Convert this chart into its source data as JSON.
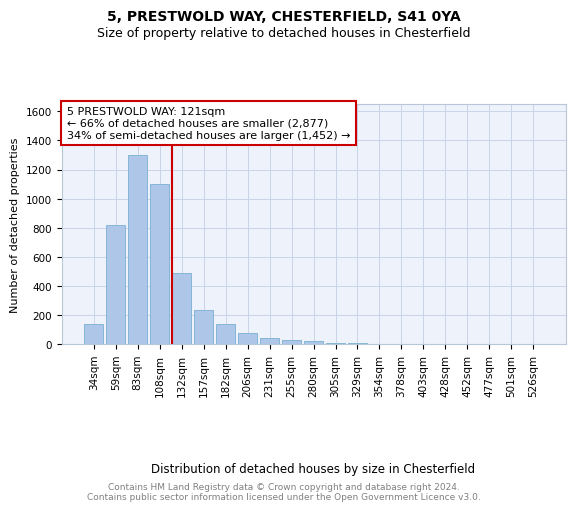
{
  "title1": "5, PRESTWOLD WAY, CHESTERFIELD, S41 0YA",
  "title2": "Size of property relative to detached houses in Chesterfield",
  "xlabel": "Distribution of detached houses by size in Chesterfield",
  "ylabel": "Number of detached properties",
  "categories": [
    "34sqm",
    "59sqm",
    "83sqm",
    "108sqm",
    "132sqm",
    "157sqm",
    "182sqm",
    "206sqm",
    "231sqm",
    "255sqm",
    "280sqm",
    "305sqm",
    "329sqm",
    "354sqm",
    "378sqm",
    "403sqm",
    "428sqm",
    "452sqm",
    "477sqm",
    "501sqm",
    "526sqm"
  ],
  "values": [
    140,
    820,
    1300,
    1100,
    490,
    235,
    135,
    75,
    45,
    30,
    20,
    10,
    8,
    3,
    2,
    1,
    0,
    0,
    0,
    0,
    0
  ],
  "bar_color": "#aec6e8",
  "bar_edge_color": "#7ab0d4",
  "vline_x": 3.55,
  "vline_color": "#cc0000",
  "annotation_box_text": "5 PRESTWOLD WAY: 121sqm\n← 66% of detached houses are smaller (2,877)\n34% of semi-detached houses are larger (1,452) →",
  "annotation_box_color": "#cc0000",
  "ylim": [
    0,
    1650
  ],
  "yticks": [
    0,
    200,
    400,
    600,
    800,
    1000,
    1200,
    1400,
    1600
  ],
  "grid_color": "#c8d4e8",
  "background_color": "#eef2fa",
  "footer_text": "Contains HM Land Registry data © Crown copyright and database right 2024.\nContains public sector information licensed under the Open Government Licence v3.0.",
  "title1_fontsize": 10,
  "title2_fontsize": 9,
  "xlabel_fontsize": 8.5,
  "ylabel_fontsize": 8,
  "tick_fontsize": 7.5,
  "annotation_fontsize": 8,
  "footer_fontsize": 6.5
}
